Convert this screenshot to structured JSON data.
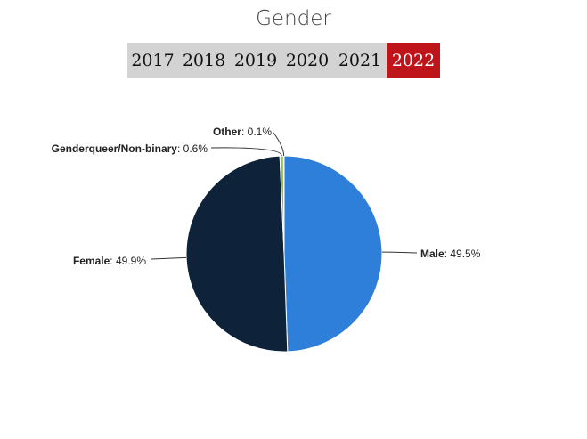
{
  "title": "Gender",
  "years": {
    "tabs": [
      "2017",
      "2018",
      "2019",
      "2020",
      "2021",
      "2022"
    ],
    "active": "2022"
  },
  "colors": {
    "male": "#2e7fd9",
    "female": "#0e2239",
    "genderqueer": "#8bc34a",
    "other": "#f2c94c",
    "active_tab": "#c0141b",
    "tab_bar": "#d3d3d3"
  },
  "chart_data": {
    "type": "pie",
    "title": "Gender",
    "slices": [
      {
        "name": "Male",
        "value": 49.5,
        "label": "49.5%"
      },
      {
        "name": "Female",
        "value": 49.9,
        "label": "49.9%"
      },
      {
        "name": "Genderqueer/Non-binary",
        "value": 0.6,
        "label": "0.6%"
      },
      {
        "name": "Other",
        "value": 0.1,
        "label": "0.1%"
      }
    ]
  }
}
